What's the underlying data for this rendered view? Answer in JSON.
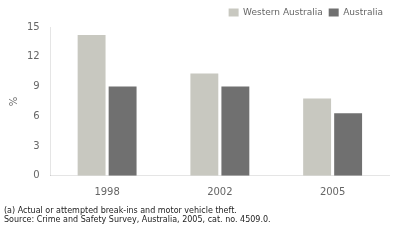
{
  "chart_data": {
    "type": "bar",
    "categories": [
      "1998",
      "2002",
      "2005"
    ],
    "series": [
      {
        "name": "Western Australia",
        "color": "#c8c8c0",
        "values": [
          14.2,
          10.3,
          7.8
        ]
      },
      {
        "name": "Australia",
        "color": "#707070",
        "values": [
          9.0,
          9.0,
          6.3
        ]
      }
    ],
    "ylabel": "%",
    "ylim": [
      0,
      15
    ],
    "yticks": [
      0,
      3,
      6,
      9,
      12,
      15
    ],
    "grid": false,
    "legend": "upper right",
    "annotations": [
      "(a) Actual or attempted break-ins and motor vehicle theft.",
      "Source: Crime and Safety Survey, Australia, 2005, cat. no. 4509.0."
    ]
  }
}
